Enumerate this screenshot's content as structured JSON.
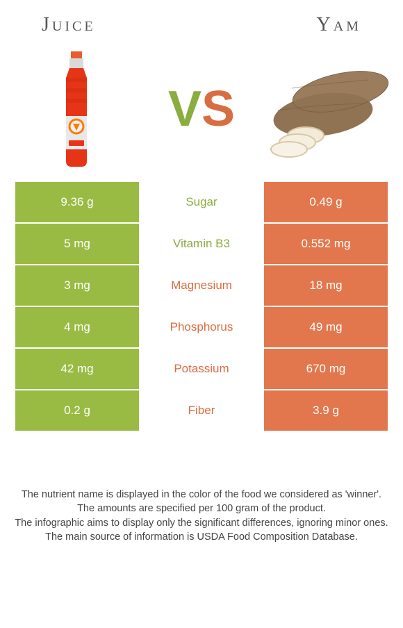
{
  "header": {
    "left_title": "Juice",
    "right_title": "Yam"
  },
  "vs": {
    "v": "V",
    "s": "S"
  },
  "colors": {
    "green": "#99bb44",
    "orange": "#e2774e",
    "green_text": "#8aad3f",
    "orange_text": "#d96d42"
  },
  "rows": [
    {
      "left": "9.36 g",
      "label": "Sugar",
      "right": "0.49 g",
      "winner": "left"
    },
    {
      "left": "5 mg",
      "label": "Vitamin B3",
      "right": "0.552 mg",
      "winner": "left"
    },
    {
      "left": "3 mg",
      "label": "Magnesium",
      "right": "18 mg",
      "winner": "right"
    },
    {
      "left": "4 mg",
      "label": "Phosphorus",
      "right": "49 mg",
      "winner": "right"
    },
    {
      "left": "42 mg",
      "label": "Potassium",
      "right": "670 mg",
      "winner": "right"
    },
    {
      "left": "0.2 g",
      "label": "Fiber",
      "right": "3.9 g",
      "winner": "right"
    }
  ],
  "footer": {
    "line1": "The nutrient name is displayed in the color of the food we considered as 'winner'.",
    "line2": "The amounts are specified per 100 gram of the product.",
    "line3": "The infographic aims to display only the significant differences, ignoring minor ones.",
    "line4": "The main source of information is USDA Food Composition Database."
  }
}
